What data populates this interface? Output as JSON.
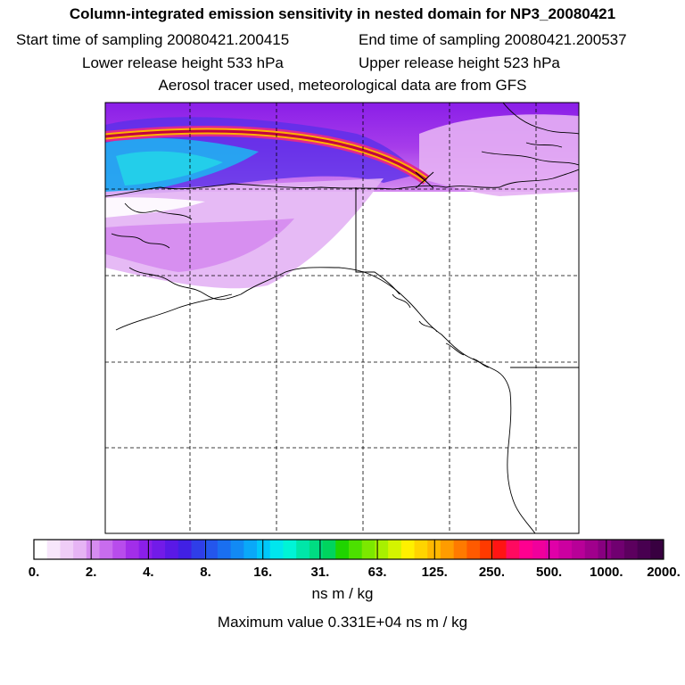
{
  "header": {
    "title": "Column-integrated emission sensitivity in nested domain for NP3_20080421",
    "start_label": "Start time of sampling 20080421.200415",
    "end_label": "End time of sampling 20080421.200537",
    "lower_label": "Lower release height  533 hPa",
    "upper_label": "Upper release height  523 hPa",
    "tracer_label": "Aerosol tracer used, meteorological data are from GFS"
  },
  "colorbar": {
    "tick_labels": [
      "0.",
      "2.",
      "4.",
      "8.",
      "16.",
      "31.",
      "63.",
      "125.",
      "250.",
      "500.",
      "1000.",
      "2000."
    ],
    "units": "ns m / kg",
    "colors": [
      "#ffffff",
      "#f7e6fb",
      "#efcdf7",
      "#e6b4f4",
      "#d68cf0",
      "#c86cee",
      "#b84cec",
      "#a22ee9",
      "#8b1fe9",
      "#721be8",
      "#5a19e6",
      "#4120e4",
      "#2f3ee8",
      "#2456ec",
      "#1a6ff0",
      "#128af4",
      "#0aa8f8",
      "#00c8fa",
      "#00e6ee",
      "#00f4d6",
      "#00e6a8",
      "#00dc82",
      "#00d45e",
      "#20d400",
      "#4ce000",
      "#7ce800",
      "#a8f000",
      "#d4f400",
      "#fff000",
      "#ffd400",
      "#ffb800",
      "#ff9c00",
      "#ff7a00",
      "#ff5a00",
      "#ff3a00",
      "#ff1414",
      "#ff0a60",
      "#ff0090",
      "#f0009c",
      "#e000a8",
      "#cc00a0",
      "#b80098",
      "#a0008c",
      "#880080",
      "#700070",
      "#5c005e",
      "#480050",
      "#380040"
    ]
  },
  "max_value_label": "Maximum value  0.331E+04 ns m / kg"
}
